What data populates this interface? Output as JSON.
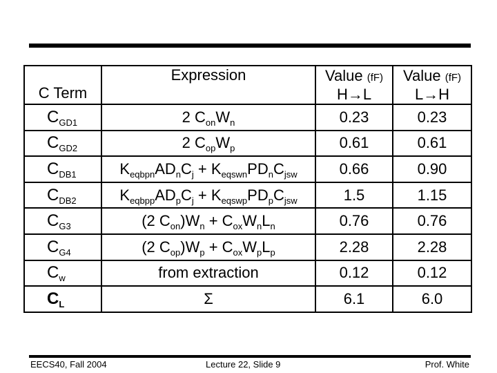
{
  "table": {
    "headers": {
      "term": "C Term",
      "expression": "Expression",
      "value_hl": {
        "label": "Value",
        "unit": "(fF)",
        "direction": "H→L"
      },
      "value_lh": {
        "label": "Value",
        "unit": "(fF)",
        "direction": "L→H"
      }
    },
    "rows": [
      {
        "term": {
          "base": "C",
          "sub": "GD1"
        },
        "expression": [
          {
            "t": "2 C"
          },
          {
            "s": "on"
          },
          {
            "t": "W"
          },
          {
            "s": "n"
          }
        ],
        "value_hl": "0.23",
        "value_lh": "0.23"
      },
      {
        "term": {
          "base": "C",
          "sub": "GD2"
        },
        "expression": [
          {
            "t": "2 C"
          },
          {
            "s": "op"
          },
          {
            "t": "W"
          },
          {
            "s": "p"
          }
        ],
        "value_hl": "0.61",
        "value_lh": "0.61"
      },
      {
        "term": {
          "base": "C",
          "sub": "DB1"
        },
        "expression": [
          {
            "t": "K"
          },
          {
            "s": "eqbpn"
          },
          {
            "t": "AD"
          },
          {
            "s": "n"
          },
          {
            "t": "C"
          },
          {
            "s": "j"
          },
          {
            "t": " + K"
          },
          {
            "s": "eqswn"
          },
          {
            "t": "PD"
          },
          {
            "s": "n"
          },
          {
            "t": "C"
          },
          {
            "s": "jsw"
          }
        ],
        "value_hl": "0.66",
        "value_lh": "0.90"
      },
      {
        "term": {
          "base": "C",
          "sub": "DB2"
        },
        "expression": [
          {
            "t": "K"
          },
          {
            "s": "eqbpp"
          },
          {
            "t": "AD"
          },
          {
            "s": "p"
          },
          {
            "t": "C"
          },
          {
            "s": "j"
          },
          {
            "t": " + K"
          },
          {
            "s": "eqswp"
          },
          {
            "t": "PD"
          },
          {
            "s": "p"
          },
          {
            "t": "C"
          },
          {
            "s": "jsw"
          }
        ],
        "value_hl": "1.5",
        "value_lh": "1.15"
      },
      {
        "term": {
          "base": "C",
          "sub": "G3"
        },
        "expression": [
          {
            "t": "(2 C"
          },
          {
            "s": "on"
          },
          {
            "t": ")W"
          },
          {
            "s": "n"
          },
          {
            "t": " + C"
          },
          {
            "s": "ox"
          },
          {
            "t": "W"
          },
          {
            "s": "n"
          },
          {
            "t": "L"
          },
          {
            "s": "n"
          }
        ],
        "value_hl": "0.76",
        "value_lh": "0.76"
      },
      {
        "term": {
          "base": "C",
          "sub": "G4"
        },
        "expression": [
          {
            "t": "(2 C"
          },
          {
            "s": "op"
          },
          {
            "t": ")W"
          },
          {
            "s": "p"
          },
          {
            "t": " + C"
          },
          {
            "s": "ox"
          },
          {
            "t": "W"
          },
          {
            "s": "p"
          },
          {
            "t": "L"
          },
          {
            "s": "p"
          }
        ],
        "value_hl": "2.28",
        "value_lh": "2.28"
      },
      {
        "term": {
          "base": "C",
          "sub": "w"
        },
        "expression": [
          {
            "t": "from extraction"
          }
        ],
        "value_hl": "0.12",
        "value_lh": "0.12"
      },
      {
        "term": {
          "base": "C",
          "sub": "L"
        },
        "expression": [
          {
            "t": "Σ"
          }
        ],
        "value_hl": "6.1",
        "value_lh": "6.0",
        "bold_term": true
      }
    ]
  },
  "footer": {
    "left": "EECS40, Fall 2004",
    "center": "Lecture 22, Slide 9",
    "right": "Prof. White"
  }
}
